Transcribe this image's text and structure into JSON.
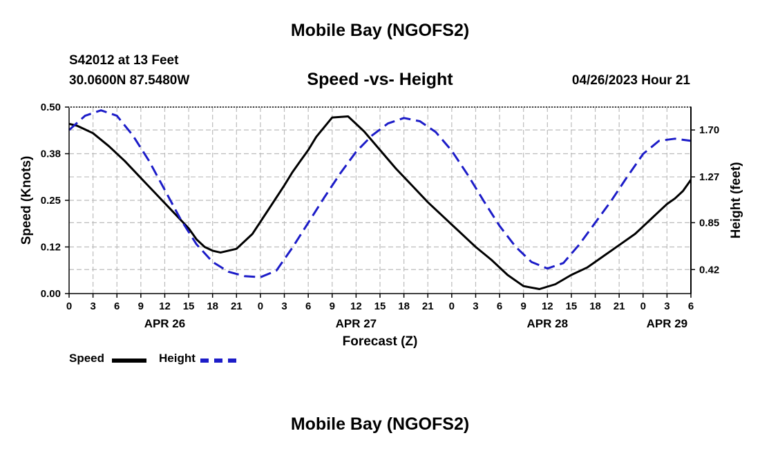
{
  "header": {
    "title": "Mobile Bay (NGOFS2)",
    "station": "S42012 at 13 Feet",
    "coords": "30.0600N  87.5480W",
    "subtitle": "Speed -vs- Height",
    "datetime": "04/26/2023 Hour 21"
  },
  "footer": {
    "title": "Mobile Bay (NGOFS2)"
  },
  "legend": {
    "speed_label": "Speed",
    "height_label": "Height"
  },
  "colors": {
    "speed": "#000000",
    "height": "#1c1cc8",
    "grid": "#bbbbbb"
  },
  "chart_data": {
    "type": "line",
    "title": "Speed -vs- Height",
    "xlabel": "Forecast (Z)",
    "ylabel": "Speed (Knots)",
    "y2label": "Height (feet)",
    "xlim": [
      0,
      78
    ],
    "ylim": [
      0,
      0.5
    ],
    "y2lim": [
      0.2,
      1.91
    ],
    "x_ticks": [
      0,
      3,
      6,
      9,
      12,
      15,
      18,
      21,
      24,
      27,
      30,
      33,
      36,
      39,
      42,
      45,
      48,
      51,
      54,
      57,
      60,
      63,
      66,
      69,
      72,
      75,
      78
    ],
    "x_tick_labels": [
      "0",
      "3",
      "6",
      "9",
      "12",
      "15",
      "18",
      "21",
      "0",
      "3",
      "6",
      "9",
      "12",
      "15",
      "18",
      "21",
      "0",
      "3",
      "6",
      "9",
      "12",
      "15",
      "18",
      "21",
      "0",
      "3",
      "6"
    ],
    "date_labels": [
      {
        "x": 12,
        "label": "APR 26"
      },
      {
        "x": 36,
        "label": "APR 27"
      },
      {
        "x": 60,
        "label": "APR 28"
      },
      {
        "x": 75,
        "label": "APR 29"
      }
    ],
    "y_ticks": [
      0,
      0.125,
      0.25,
      0.375,
      0.5
    ],
    "y_tick_labels": [
      "0.00",
      "0.12",
      "0.25",
      "0.38",
      "0.50"
    ],
    "y2_ticks": [
      0.42,
      0.85,
      1.27,
      1.7
    ],
    "y2_tick_labels": [
      "0.42",
      "0.85",
      "1.27",
      "1.70"
    ],
    "series": [
      {
        "name": "Speed",
        "axis": "left",
        "style": "solid",
        "x": [
          0,
          1,
          3,
          5,
          7,
          9,
          11,
          13,
          15,
          16,
          17,
          18,
          19,
          21,
          23,
          25,
          27,
          28,
          29,
          30,
          31,
          33,
          35,
          37,
          39,
          41,
          43,
          45,
          47,
          48,
          49,
          50,
          51,
          53,
          55,
          57,
          59,
          61,
          63,
          65,
          67,
          69,
          71,
          72,
          73,
          74,
          75,
          76,
          77,
          78
        ],
        "y": [
          0.455,
          0.45,
          0.43,
          0.395,
          0.355,
          0.31,
          0.265,
          0.22,
          0.175,
          0.145,
          0.125,
          0.115,
          0.11,
          0.12,
          0.16,
          0.225,
          0.29,
          0.325,
          0.355,
          0.385,
          0.42,
          0.472,
          0.475,
          0.435,
          0.385,
          0.335,
          0.29,
          0.245,
          0.205,
          0.185,
          0.165,
          0.145,
          0.125,
          0.09,
          0.05,
          0.02,
          0.012,
          0.025,
          0.05,
          0.07,
          0.1,
          0.13,
          0.16,
          0.18,
          0.2,
          0.22,
          0.24,
          0.255,
          0.275,
          0.305
        ]
      },
      {
        "name": "Height",
        "axis": "right",
        "style": "dashed",
        "x": [
          0,
          2,
          4,
          6,
          8,
          10,
          12,
          14,
          16,
          18,
          20,
          22,
          24,
          26,
          28,
          30,
          32,
          34,
          36,
          38,
          40,
          42,
          44,
          46,
          48,
          50,
          52,
          54,
          56,
          58,
          60,
          62,
          64,
          66,
          68,
          70,
          72,
          74,
          76,
          78
        ],
        "y": [
          1.7,
          1.83,
          1.88,
          1.83,
          1.65,
          1.42,
          1.15,
          0.88,
          0.65,
          0.49,
          0.4,
          0.36,
          0.35,
          0.41,
          0.62,
          0.85,
          1.08,
          1.3,
          1.5,
          1.65,
          1.76,
          1.81,
          1.78,
          1.68,
          1.51,
          1.29,
          1.05,
          0.82,
          0.63,
          0.49,
          0.43,
          0.48,
          0.65,
          0.85,
          1.05,
          1.27,
          1.48,
          1.6,
          1.62,
          1.6
        ]
      }
    ]
  }
}
